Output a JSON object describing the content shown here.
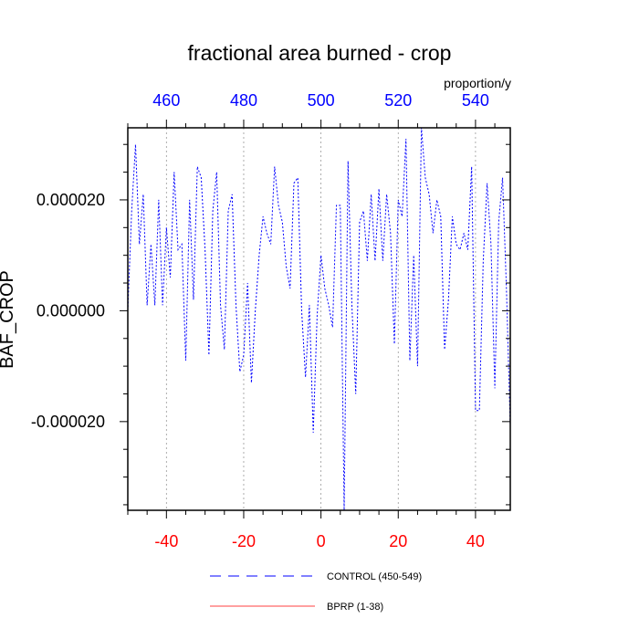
{
  "chart_data": {
    "type": "line",
    "title": "fractional area burned - crop",
    "ylabel": "BAF_CROP",
    "units": "proportion/y",
    "xlim": [
      -50,
      49
    ],
    "ylim": [
      -3.6e-05,
      3.3e-05
    ],
    "yticks": [
      {
        "value": 2e-05,
        "label": "0.000020"
      },
      {
        "value": 0.0,
        "label": "0.000000"
      },
      {
        "value": -2e-05,
        "label": "-0.000020"
      }
    ],
    "xticks_bottom": [
      {
        "value": -40,
        "label": "-40"
      },
      {
        "value": -20,
        "label": "-20"
      },
      {
        "value": 0,
        "label": "0"
      },
      {
        "value": 20,
        "label": "20"
      },
      {
        "value": 40,
        "label": "40"
      }
    ],
    "xticks_top": [
      {
        "value": -40,
        "label": "460"
      },
      {
        "value": -20,
        "label": "480"
      },
      {
        "value": 0,
        "label": "500"
      },
      {
        "value": 20,
        "label": "520"
      },
      {
        "value": 40,
        "label": "540"
      }
    ],
    "grid": "vertical-dotted",
    "legend_placement": "bottom",
    "colors": {
      "control": "#0000ff",
      "bprp": "#ff0000",
      "bottom_axis": "#ff0000",
      "top_axis": "#0000ff"
    },
    "series": [
      {
        "name": "CONTROL (450-549)",
        "style": "dashed",
        "x": [
          -50,
          -49,
          -48,
          -47,
          -46,
          -45,
          -44,
          -43,
          -42,
          -41,
          -40,
          -39,
          -38,
          -37,
          -36,
          -35,
          -34,
          -33,
          -32,
          -31,
          -30,
          -29,
          -28,
          -27,
          -26,
          -25,
          -24,
          -23,
          -22,
          -21,
          -20,
          -19,
          -18,
          -17,
          -16,
          -15,
          -14,
          -13,
          -12,
          -11,
          -10,
          -9,
          -8,
          -7,
          -6,
          -5,
          -4,
          -3,
          -2,
          -1,
          0,
          1,
          2,
          3,
          4,
          5,
          6,
          7,
          8,
          9,
          10,
          11,
          12,
          13,
          14,
          15,
          16,
          17,
          18,
          19,
          20,
          21,
          22,
          23,
          24,
          25,
          26,
          27,
          28,
          29,
          30,
          31,
          32,
          33,
          34,
          35,
          36,
          37,
          38,
          39,
          40,
          41,
          42,
          43,
          44,
          45,
          46,
          47,
          48,
          49
        ],
        "y": [
          0.0,
          1.8e-05,
          3e-05,
          1.2e-05,
          2.1e-05,
          1e-06,
          1.2e-05,
          1e-06,
          2e-05,
          1e-06,
          1.5e-05,
          6e-06,
          2.5e-05,
          1.1e-05,
          1.2e-05,
          -9e-06,
          2e-05,
          2e-06,
          2.6e-05,
          2.4e-05,
          1.1e-05,
          -8e-06,
          1.8e-05,
          2.5e-05,
          1e-06,
          -7e-06,
          1.8e-05,
          2.1e-05,
          1e-06,
          -1.1e-05,
          -8e-06,
          5e-06,
          -1.3e-05,
          0.0,
          1e-05,
          1.7e-05,
          1.4e-05,
          1.2e-05,
          2.6e-05,
          1.9e-05,
          1.6e-05,
          8e-06,
          4e-06,
          2.3e-05,
          2.4e-05,
          0.0,
          -1.2e-05,
          1e-06,
          -2.2e-05,
          -1e-06,
          1e-05,
          4e-06,
          1e-06,
          -3e-06,
          1.9e-05,
          1.9e-05,
          -3.6e-05,
          2.7e-05,
          1e-06,
          -1.5e-05,
          1.6e-05,
          1.8e-05,
          9e-06,
          2.1e-05,
          9e-06,
          2.2e-05,
          9e-06,
          2.1e-05,
          1.4e-05,
          -6e-06,
          2e-05,
          1.7e-05,
          3.1e-05,
          -9e-06,
          1e-05,
          -1e-05,
          3.3e-05,
          2.4e-05,
          2.1e-05,
          1.4e-05,
          2e-05,
          1.7e-05,
          -7e-06,
          2e-06,
          1.7e-05,
          1.2e-05,
          1.1e-05,
          1.4e-05,
          1.1e-05,
          2.6e-05,
          -1.8e-05,
          -1.8e-05,
          9e-06,
          2.3e-05,
          1.2e-05,
          -1.4e-05,
          1.6e-05,
          2.4e-05,
          4e-06,
          -2.1e-05
        ]
      },
      {
        "name": "BPRP (1-38)",
        "style": "solid",
        "x": [],
        "y": []
      }
    ]
  }
}
